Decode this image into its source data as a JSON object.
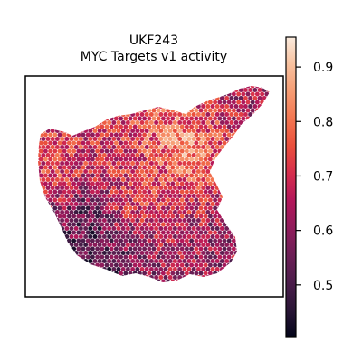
{
  "chart_data": {
    "type": "heatmap",
    "title": "UKF243",
    "subtitle": "MYC Targets v1 activity",
    "xlabel": "",
    "ylabel": "",
    "colorbar": {
      "vmin": 0.405,
      "vmax": 0.955,
      "ticks": [
        0.5,
        0.6,
        0.7,
        0.8,
        0.9
      ],
      "tick_labels": [
        "0.5",
        "0.6",
        "0.7",
        "0.8",
        "0.9"
      ],
      "colormap": "rocket",
      "color_stops": [
        "#03051a",
        "#2b1637",
        "#4c1d4b",
        "#6d1f56",
        "#901c5b",
        "#b3175a",
        "#d62e4d",
        "#ea4f3c",
        "#f37651",
        "#f69c73",
        "#f7c19f",
        "#faebdd"
      ]
    },
    "spots": {
      "description": "Spatial transcriptomics spots (hexagonal grid) colored by MYC Targets v1 activity score",
      "value_range": [
        0.41,
        0.95
      ],
      "regions": [
        {
          "name": "left lobe",
          "typical_value": 0.76
        },
        {
          "name": "center-left low region",
          "typical_value": 0.5
        },
        {
          "name": "center",
          "typical_value": 0.74
        },
        {
          "name": "center-right high region",
          "typical_value": 0.86
        },
        {
          "name": "top-right arm",
          "typical_value": 0.62
        },
        {
          "name": "bottom-left edge",
          "typical_value": 0.48
        },
        {
          "name": "bottom-right",
          "typical_value": 0.6
        }
      ]
    },
    "grid": false,
    "legend": "colorbar-right"
  }
}
